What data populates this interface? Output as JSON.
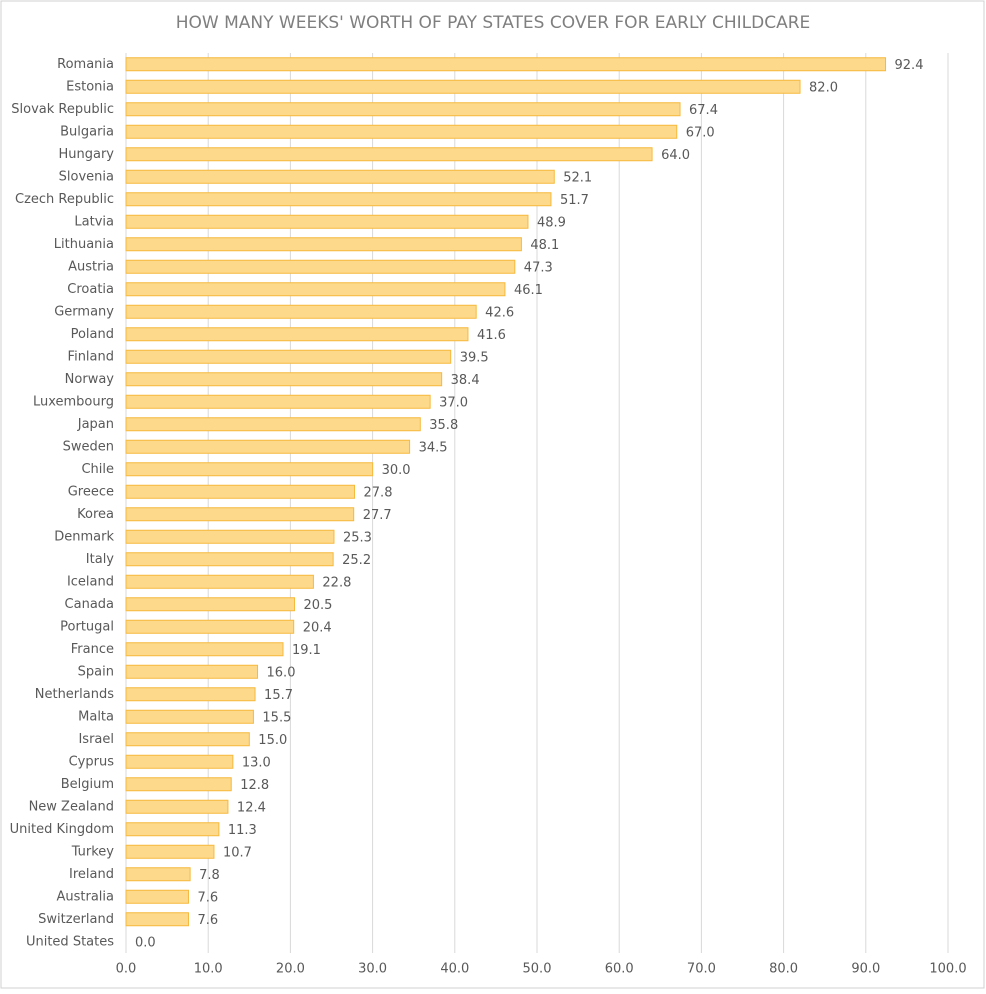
{
  "chart_data": {
    "type": "bar",
    "orientation": "horizontal",
    "title": "HOW MANY WEEKS' WORTH OF PAY STATES COVER FOR EARLY CHILDCARE",
    "categories": [
      "Romania",
      "Estonia",
      "Slovak Republic",
      "Bulgaria",
      "Hungary",
      "Slovenia",
      "Czech Republic",
      "Latvia",
      "Lithuania",
      "Austria",
      "Croatia",
      "Germany",
      "Poland",
      "Finland",
      "Norway",
      "Luxembourg",
      "Japan",
      "Sweden",
      "Chile",
      "Greece",
      "Korea",
      "Denmark",
      "Italy",
      "Iceland",
      "Canada",
      "Portugal",
      "France",
      "Spain",
      "Netherlands",
      "Malta",
      "Israel",
      "Cyprus",
      "Belgium",
      "New Zealand",
      "United Kingdom",
      "Turkey",
      "Ireland",
      "Australia",
      "Switzerland",
      "United States"
    ],
    "values": [
      92.4,
      82.0,
      67.4,
      67.0,
      64.0,
      52.1,
      51.7,
      48.9,
      48.1,
      47.3,
      46.1,
      42.6,
      41.6,
      39.5,
      38.4,
      37.0,
      35.8,
      34.5,
      30.0,
      27.8,
      27.7,
      25.3,
      25.2,
      22.8,
      20.5,
      20.4,
      19.1,
      16.0,
      15.7,
      15.5,
      15.0,
      13.0,
      12.8,
      12.4,
      11.3,
      10.7,
      7.8,
      7.6,
      7.6,
      0.0
    ],
    "value_labels": [
      "92.4",
      "82.0",
      "67.4",
      "67.0",
      "64.0",
      "52.1",
      "51.7",
      "48.9",
      "48.1",
      "47.3",
      "46.1",
      "42.6",
      "41.6",
      "39.5",
      "38.4",
      "37.0",
      "35.8",
      "34.5",
      "30.0",
      "27.8",
      "27.7",
      "25.3",
      "25.2",
      "22.8",
      "20.5",
      "20.4",
      "19.1",
      "16.0",
      "15.7",
      "15.5",
      "15.0",
      "13.0",
      "12.8",
      "12.4",
      "11.3",
      "10.7",
      "7.8",
      "7.6",
      "7.6",
      "0.0"
    ],
    "color": "#fdd98c",
    "edge_color": "#f6b93b",
    "xlim": [
      0,
      100
    ],
    "xticks": [
      {
        "value": 0,
        "label": "0.0"
      },
      {
        "value": 10,
        "label": "10.0"
      },
      {
        "value": 20,
        "label": "20.0"
      },
      {
        "value": 30,
        "label": "30.0"
      },
      {
        "value": 40,
        "label": "40.0"
      },
      {
        "value": 50,
        "label": "50.0"
      },
      {
        "value": 60,
        "label": "60.0"
      },
      {
        "value": 70,
        "label": "70.0"
      },
      {
        "value": 80,
        "label": "80.0"
      },
      {
        "value": 90,
        "label": "90.0"
      },
      {
        "value": 100,
        "label": "100.0"
      }
    ],
    "grid": true
  }
}
